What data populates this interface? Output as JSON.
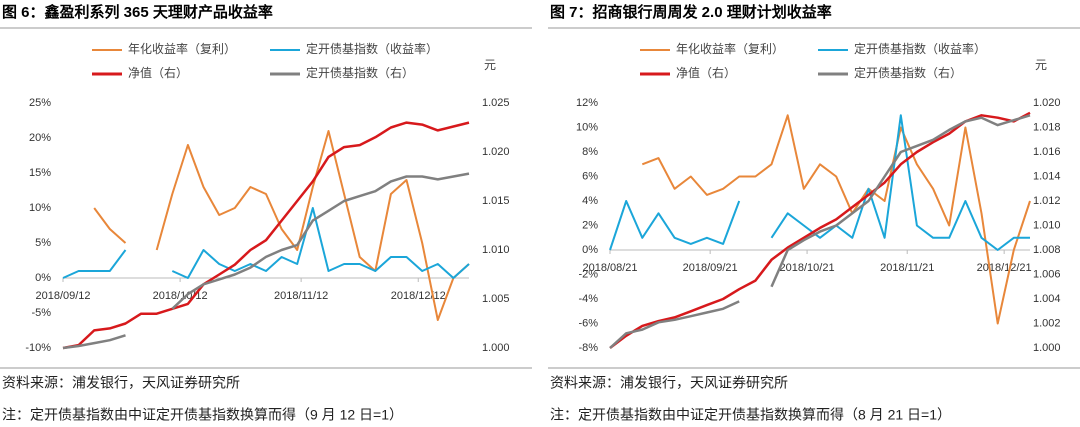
{
  "chart_data": [
    {
      "type": "line",
      "title": "图 6：鑫盈利系列 365 天理财产品收益率",
      "y2label": "元",
      "source": "资料来源：浦发银行，天风证券研究所",
      "note": "注：定开债基指数由中证定开债基指数换算而得（9 月 12 日=1）",
      "x": [
        "2018/09/12",
        "2018/09/16",
        "2018/09/20",
        "2018/09/24",
        "2018/09/28",
        "2018/10/02",
        "2018/10/06",
        "2018/10/10",
        "2018/10/14",
        "2018/10/18",
        "2018/10/22",
        "2018/10/26",
        "2018/10/30",
        "2018/11/03",
        "2018/11/07",
        "2018/11/11",
        "2018/11/15",
        "2018/11/19",
        "2018/11/23",
        "2018/11/27",
        "2018/12/01",
        "2018/12/05",
        "2018/12/09",
        "2018/12/13",
        "2018/12/17",
        "2018/12/21",
        "2018/12/25"
      ],
      "xlim": [
        "2018/09/12",
        "2018/12/25"
      ],
      "xticks": [
        "2018/09/12",
        "2018/10/12",
        "2018/11/12",
        "2018/12/12"
      ],
      "ylim": [
        -10,
        25
      ],
      "yticks": [
        {
          "value": -10,
          "label": "-10%"
        },
        {
          "value": -5,
          "label": "-5%"
        },
        {
          "value": 0,
          "label": "0%"
        },
        {
          "value": 5,
          "label": "5%"
        },
        {
          "value": 10,
          "label": "10%"
        },
        {
          "value": 15,
          "label": "15%"
        },
        {
          "value": 20,
          "label": "20%"
        },
        {
          "value": 25,
          "label": "25%"
        }
      ],
      "y2lim": [
        1.0,
        1.025
      ],
      "y2ticks": [
        {
          "value": 1.0,
          "label": "1.000"
        },
        {
          "value": 1.005,
          "label": "1.005"
        },
        {
          "value": 1.01,
          "label": "1.010"
        },
        {
          "value": 1.015,
          "label": "1.015"
        },
        {
          "value": 1.02,
          "label": "1.020"
        },
        {
          "value": 1.025,
          "label": "1.025"
        }
      ],
      "series": [
        {
          "name": "年化收益率（复利）",
          "color": "#E8873A",
          "values": [
            null,
            null,
            10,
            7,
            5,
            null,
            4,
            12,
            19,
            13,
            9,
            10,
            13,
            12,
            7,
            4,
            13,
            21,
            12,
            3,
            1,
            12,
            14,
            5,
            -6,
            0,
            2
          ]
        },
        {
          "name": "定开债基指数（收益率）",
          "color": "#1BA6D9",
          "values": [
            0,
            1,
            1,
            1,
            4,
            null,
            null,
            1,
            0,
            4,
            2,
            1,
            2,
            1,
            3,
            2,
            10,
            1,
            2,
            2,
            1,
            3,
            3,
            1,
            2,
            0,
            2
          ]
        },
        {
          "name": "净值（右）",
          "color": "#D7191C",
          "axis": "y2",
          "values": [
            1.0,
            1.0003,
            1.0018,
            1.002,
            1.0025,
            1.0035,
            1.0035,
            1.004,
            1.0045,
            1.0065,
            1.0075,
            1.0085,
            1.01,
            1.011,
            1.013,
            1.015,
            1.017,
            1.0195,
            1.0205,
            1.0207,
            1.0215,
            1.0225,
            1.023,
            1.0228,
            1.0222,
            1.0226,
            1.023
          ]
        },
        {
          "name": "定开债基指数（右）",
          "color": "#808080",
          "axis": "y2",
          "values": [
            1.0,
            1.0002,
            1.0005,
            1.0008,
            1.0013,
            null,
            null,
            1.004,
            1.0055,
            1.0065,
            1.007,
            1.0075,
            1.0082,
            1.0093,
            1.01,
            1.0105,
            1.013,
            1.014,
            1.015,
            1.0155,
            1.016,
            1.017,
            1.0175,
            1.0175,
            1.0172,
            1.0175,
            1.0178
          ]
        }
      ]
    },
    {
      "type": "line",
      "title": "图 7：招商银行周周发 2.0 理财计划收益率",
      "y2label": "元",
      "source": "资料来源：浦发银行，天风证券研究所",
      "note": "注：定开债基指数由中证定开债基指数换算而得（8 月 21 日=1）",
      "x": [
        "2018/08/21",
        "2018/08/26",
        "2018/08/31",
        "2018/09/05",
        "2018/09/10",
        "2018/09/15",
        "2018/09/20",
        "2018/09/25",
        "2018/09/30",
        "2018/10/05",
        "2018/10/10",
        "2018/10/15",
        "2018/10/20",
        "2018/10/25",
        "2018/10/30",
        "2018/11/04",
        "2018/11/09",
        "2018/11/14",
        "2018/11/19",
        "2018/11/24",
        "2018/11/29",
        "2018/12/04",
        "2018/12/09",
        "2018/12/14",
        "2018/12/19",
        "2018/12/24",
        "2018/12/29"
      ],
      "xlim": [
        "2018/08/21",
        "2018/12/29"
      ],
      "xticks": [
        "2018/08/21",
        "2018/09/21",
        "2018/10/21",
        "2018/11/21",
        "2018/12/21"
      ],
      "ylim": [
        -8,
        12
      ],
      "yticks": [
        {
          "value": -8,
          "label": "-8%"
        },
        {
          "value": -6,
          "label": "-6%"
        },
        {
          "value": -4,
          "label": "-4%"
        },
        {
          "value": -2,
          "label": "-2%"
        },
        {
          "value": 0,
          "label": "0%"
        },
        {
          "value": 2,
          "label": "2%"
        },
        {
          "value": 4,
          "label": "4%"
        },
        {
          "value": 6,
          "label": "6%"
        },
        {
          "value": 8,
          "label": "8%"
        },
        {
          "value": 10,
          "label": "10%"
        },
        {
          "value": 12,
          "label": "12%"
        }
      ],
      "y2lim": [
        1.0,
        1.02
      ],
      "y2ticks": [
        {
          "value": 1.0,
          "label": "1.000"
        },
        {
          "value": 1.002,
          "label": "1.002"
        },
        {
          "value": 1.004,
          "label": "1.004"
        },
        {
          "value": 1.006,
          "label": "1.006"
        },
        {
          "value": 1.008,
          "label": "1.008"
        },
        {
          "value": 1.01,
          "label": "1.010"
        },
        {
          "value": 1.012,
          "label": "1.012"
        },
        {
          "value": 1.014,
          "label": "1.014"
        },
        {
          "value": 1.016,
          "label": "1.016"
        },
        {
          "value": 1.018,
          "label": "1.018"
        },
        {
          "value": 1.02,
          "label": "1.020"
        }
      ],
      "series": [
        {
          "name": "年化收益率（复利）",
          "color": "#E8873A",
          "values": [
            null,
            null,
            7,
            7.5,
            5,
            6,
            4.5,
            5,
            6,
            6,
            7,
            11,
            5,
            7,
            6,
            3,
            5,
            4,
            10,
            7,
            5,
            2,
            10,
            3,
            -6,
            0,
            4
          ]
        },
        {
          "name": "定开债基指数（收益率）",
          "color": "#1BA6D9",
          "values": [
            0,
            4,
            1,
            3,
            1,
            0.5,
            1,
            0.5,
            4,
            null,
            1,
            3,
            2,
            1,
            2,
            1,
            5,
            1,
            11,
            2,
            1,
            1,
            4,
            1,
            0,
            1,
            1
          ]
        },
        {
          "name": "净值（右）",
          "color": "#D7191C",
          "axis": "y2",
          "values": [
            1.0,
            1.001,
            1.0018,
            1.0022,
            1.0025,
            1.003,
            1.0035,
            1.004,
            1.0048,
            1.0055,
            1.0072,
            1.0082,
            1.009,
            1.0098,
            1.0105,
            1.0115,
            1.0125,
            1.0135,
            1.015,
            1.016,
            1.0168,
            1.0175,
            1.0185,
            1.019,
            1.0188,
            1.0185,
            1.0192
          ]
        },
        {
          "name": "定开债基指数（右）",
          "color": "#808080",
          "axis": "y2",
          "values": [
            1.0,
            1.0012,
            1.0015,
            1.0021,
            1.0023,
            1.0026,
            1.0029,
            1.0032,
            1.0038,
            null,
            1.005,
            1.008,
            1.0088,
            1.0095,
            1.01,
            1.011,
            1.012,
            1.014,
            1.016,
            1.0165,
            1.017,
            1.0178,
            1.0185,
            1.0188,
            1.0182,
            1.0186,
            1.019
          ]
        }
      ]
    }
  ]
}
